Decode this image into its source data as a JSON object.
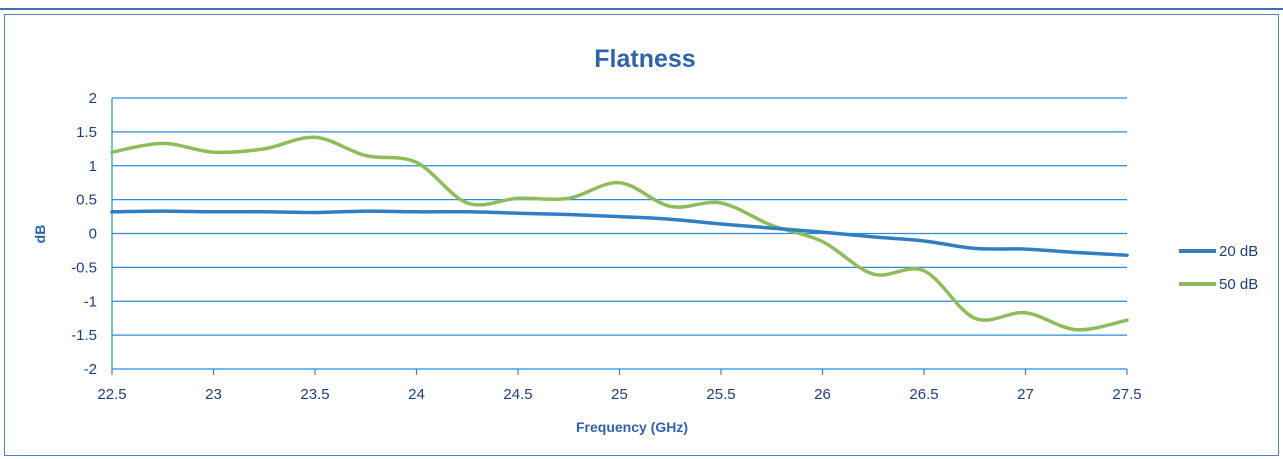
{
  "chart_data": {
    "type": "line",
    "title": "Flatness",
    "xlabel": "Frequency (GHz)",
    "ylabel": "dB",
    "xlim": [
      22.5,
      27.5
    ],
    "ylim": [
      -2,
      2
    ],
    "x_ticks": [
      "22.5",
      "23",
      "23.5",
      "24",
      "24.5",
      "25",
      "25.5",
      "26",
      "26.5",
      "27",
      "27.5"
    ],
    "y_ticks": [
      "2",
      "1.5",
      "1",
      "0.5",
      "0",
      "-0.5",
      "-1",
      "-1.5",
      "-2"
    ],
    "grid": "horizontal",
    "legend_position": "right",
    "series": [
      {
        "name": "20 dB",
        "color": "#2f7fc1",
        "x": [
          22.5,
          22.75,
          23.0,
          23.25,
          23.5,
          23.75,
          24.0,
          24.25,
          24.5,
          24.75,
          25.0,
          25.25,
          25.5,
          25.75,
          26.0,
          26.25,
          26.5,
          26.75,
          27.0,
          27.25,
          27.5
        ],
        "values": [
          0.32,
          0.33,
          0.32,
          0.32,
          0.31,
          0.33,
          0.32,
          0.32,
          0.3,
          0.28,
          0.25,
          0.21,
          0.14,
          0.08,
          0.02,
          -0.05,
          -0.11,
          -0.22,
          -0.23,
          -0.28,
          -0.32
        ]
      },
      {
        "name": "50 dB",
        "color": "#8fbc5a",
        "x": [
          22.5,
          22.75,
          23.0,
          23.25,
          23.5,
          23.75,
          24.0,
          24.25,
          24.5,
          24.75,
          25.0,
          25.25,
          25.5,
          25.75,
          26.0,
          26.25,
          26.5,
          26.75,
          27.0,
          27.25,
          27.5
        ],
        "values": [
          1.2,
          1.33,
          1.2,
          1.25,
          1.42,
          1.15,
          1.05,
          0.45,
          0.52,
          0.52,
          0.75,
          0.4,
          0.45,
          0.12,
          -0.12,
          -0.6,
          -0.55,
          -1.25,
          -1.17,
          -1.42,
          -1.28
        ]
      }
    ]
  }
}
